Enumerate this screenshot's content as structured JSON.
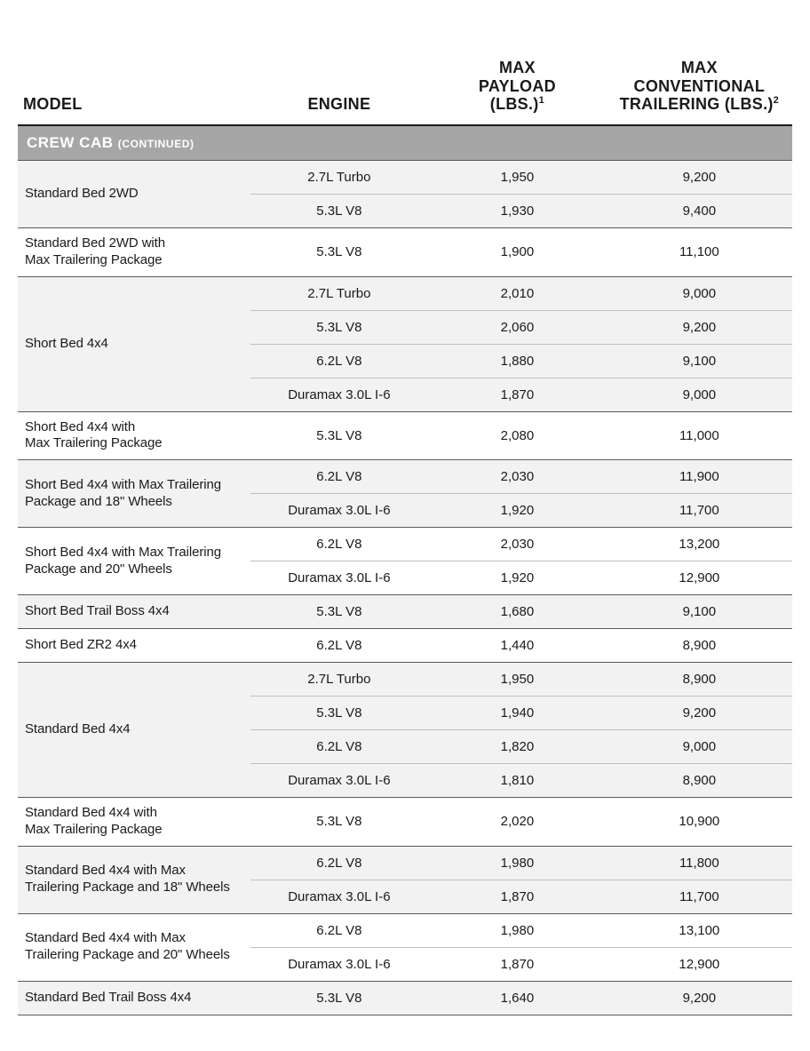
{
  "columns": {
    "model": "MODEL",
    "engine": "ENGINE",
    "payload_line1": "MAX",
    "payload_line2": "PAYLOAD",
    "payload_line3": "(LBS.)",
    "payload_sup": "1",
    "trail_line1": "MAX",
    "trail_line2": "CONVENTIONAL",
    "trail_line3": "TRAILERING (LBS.)",
    "trail_sup": "2"
  },
  "section": {
    "main": "CREW CAB",
    "sub": "(CONTINUED)"
  },
  "groups": [
    {
      "model": "Standard Bed 2WD",
      "rows": [
        {
          "engine": "2.7L Turbo",
          "payload": "1,950",
          "trail": "9,200"
        },
        {
          "engine": "5.3L V8",
          "payload": "1,930",
          "trail": "9,400"
        }
      ]
    },
    {
      "model": "Standard Bed 2WD with\nMax Trailering Package",
      "rows": [
        {
          "engine": "5.3L V8",
          "payload": "1,900",
          "trail": "11,100"
        }
      ]
    },
    {
      "model": "Short Bed 4x4",
      "rows": [
        {
          "engine": "2.7L Turbo",
          "payload": "2,010",
          "trail": "9,000"
        },
        {
          "engine": "5.3L V8",
          "payload": "2,060",
          "trail": "9,200"
        },
        {
          "engine": "6.2L V8",
          "payload": "1,880",
          "trail": "9,100"
        },
        {
          "engine": "Duramax 3.0L I-6",
          "payload": "1,870",
          "trail": "9,000"
        }
      ]
    },
    {
      "model": "Short Bed 4x4 with\nMax Trailering Package",
      "rows": [
        {
          "engine": "5.3L V8",
          "payload": "2,080",
          "trail": "11,000"
        }
      ]
    },
    {
      "model": "Short Bed 4x4 with Max Trailering\nPackage and 18\" Wheels",
      "rows": [
        {
          "engine": "6.2L V8",
          "payload": "2,030",
          "trail": "11,900"
        },
        {
          "engine": "Duramax 3.0L I-6",
          "payload": "1,920",
          "trail": "11,700"
        }
      ]
    },
    {
      "model": "Short Bed 4x4 with Max Trailering\nPackage and 20\" Wheels",
      "rows": [
        {
          "engine": "6.2L V8",
          "payload": "2,030",
          "trail": "13,200"
        },
        {
          "engine": "Duramax 3.0L I-6",
          "payload": "1,920",
          "trail": "12,900"
        }
      ]
    },
    {
      "model": "Short Bed Trail Boss 4x4",
      "rows": [
        {
          "engine": "5.3L V8",
          "payload": "1,680",
          "trail": "9,100"
        }
      ]
    },
    {
      "model": "Short Bed ZR2 4x4",
      "rows": [
        {
          "engine": "6.2L V8",
          "payload": "1,440",
          "trail": "8,900"
        }
      ]
    },
    {
      "model": "Standard Bed 4x4",
      "rows": [
        {
          "engine": "2.7L Turbo",
          "payload": "1,950",
          "trail": "8,900"
        },
        {
          "engine": "5.3L V8",
          "payload": "1,940",
          "trail": "9,200"
        },
        {
          "engine": "6.2L V8",
          "payload": "1,820",
          "trail": "9,000"
        },
        {
          "engine": "Duramax 3.0L I-6",
          "payload": "1,810",
          "trail": "8,900"
        }
      ]
    },
    {
      "model": "Standard Bed 4x4 with\nMax Trailering Package",
      "rows": [
        {
          "engine": "5.3L V8",
          "payload": "2,020",
          "trail": "10,900"
        }
      ]
    },
    {
      "model": "Standard Bed 4x4 with Max\nTrailering Package and 18\" Wheels",
      "rows": [
        {
          "engine": "6.2L V8",
          "payload": "1,980",
          "trail": "11,800"
        },
        {
          "engine": "Duramax 3.0L I-6",
          "payload": "1,870",
          "trail": "11,700"
        }
      ]
    },
    {
      "model": "Standard Bed 4x4 with Max\nTrailering Package and 20\" Wheels",
      "rows": [
        {
          "engine": "6.2L V8",
          "payload": "1,980",
          "trail": "13,100"
        },
        {
          "engine": "Duramax 3.0L I-6",
          "payload": "1,870",
          "trail": "12,900"
        }
      ]
    },
    {
      "model": "Standard Bed Trail Boss 4x4",
      "rows": [
        {
          "engine": "5.3L V8",
          "payload": "1,640",
          "trail": "9,200"
        }
      ]
    }
  ],
  "style": {
    "shade_a": "#f2f2f2",
    "shade_b": "#ffffff",
    "section_bg": "#a6a6a6",
    "group_border": "#5a5a5a",
    "inner_border": "#bfbfbf",
    "header_border": "#1a1a1a",
    "text_color": "#1a1a1a",
    "header_fontsize": 18,
    "body_fontsize": 15,
    "section_fontsize": 17
  }
}
